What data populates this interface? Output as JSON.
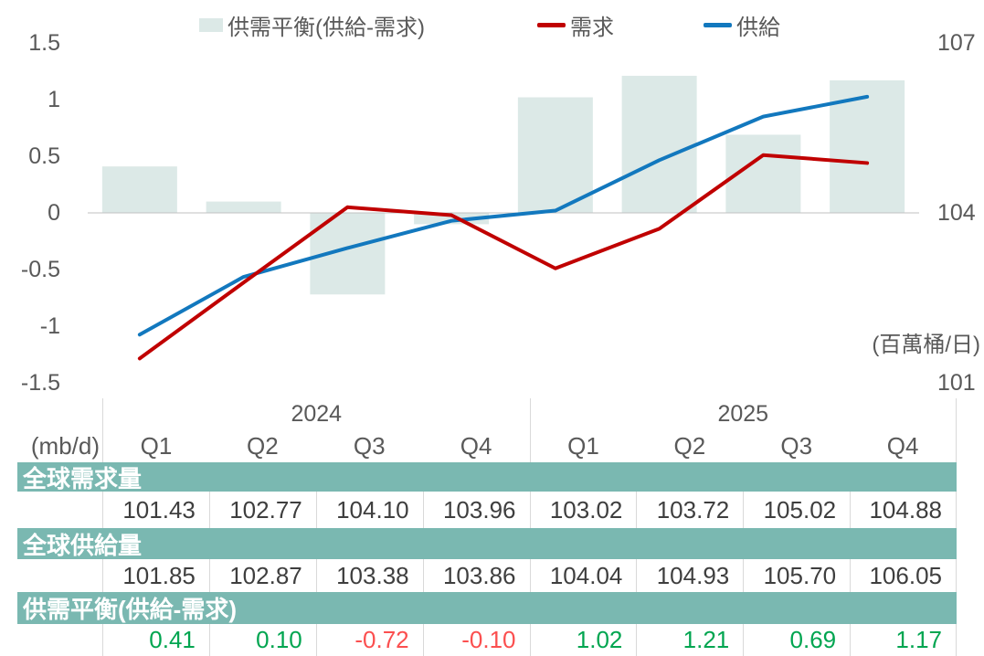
{
  "legend": {
    "items": [
      {
        "label": "供需平衡(供給-需求)",
        "marker": "square",
        "color": "#DCE9E7"
      },
      {
        "label": "需求",
        "marker": "line",
        "color": "#C00000"
      },
      {
        "label": "供給",
        "marker": "line",
        "color": "#1278BE"
      }
    ]
  },
  "unit_note": "(百萬桶/日)",
  "chart_data": {
    "type": "combo-bar-line",
    "categories": [
      "2024 Q1",
      "2024 Q2",
      "2024 Q3",
      "2024 Q4",
      "2025 Q1",
      "2025 Q2",
      "2025 Q3",
      "2025 Q4"
    ],
    "bar_series": {
      "name": "供需平衡(供給-需求)",
      "axis": "left",
      "color": "#DCE9E7",
      "values": [
        0.41,
        0.1,
        -0.72,
        -0.1,
        1.02,
        1.21,
        0.69,
        1.17
      ]
    },
    "line_series": [
      {
        "name": "需求",
        "axis": "right",
        "color": "#C00000",
        "values": [
          101.43,
          102.77,
          104.1,
          103.96,
          103.02,
          103.72,
          105.02,
          104.88
        ]
      },
      {
        "name": "供給",
        "axis": "right",
        "color": "#1278BE",
        "values": [
          101.85,
          102.87,
          103.38,
          103.86,
          104.04,
          104.93,
          105.7,
          106.05
        ]
      }
    ],
    "left_axis": {
      "min": -1.5,
      "max": 1.5,
      "tick_labels": [
        "1.5",
        "1",
        "0.5",
        "0",
        "-0.5",
        "-1",
        "-1.5"
      ],
      "tick_values": [
        1.5,
        1,
        0.5,
        0,
        -0.5,
        -1,
        -1.5
      ]
    },
    "right_axis": {
      "min": 101,
      "max": 107,
      "tick_labels": [
        "107",
        "104",
        "101"
      ],
      "tick_values": [
        107,
        104,
        101
      ]
    },
    "grid": false,
    "zero_line_color": "#C1C1C1",
    "legend_position": "top"
  },
  "table": {
    "unit_label": "(mb/d)",
    "year_groups": [
      {
        "label": "2024",
        "quarters": [
          "Q1",
          "Q2",
          "Q3",
          "Q4"
        ]
      },
      {
        "label": "2025",
        "quarters": [
          "Q1",
          "Q2",
          "Q3",
          "Q4"
        ]
      }
    ],
    "rows": [
      {
        "header": "全球需求量",
        "colored": false,
        "values": [
          "101.43",
          "102.77",
          "104.10",
          "103.96",
          "103.02",
          "103.72",
          "105.02",
          "104.88"
        ]
      },
      {
        "header": "全球供給量",
        "colored": false,
        "values": [
          "101.85",
          "102.87",
          "103.38",
          "103.86",
          "104.04",
          "104.93",
          "105.70",
          "106.05"
        ]
      },
      {
        "header": "供需平衡(供給-需求)",
        "colored": true,
        "values": [
          "0.41",
          "0.10",
          "-0.72",
          "-0.10",
          "1.02",
          "1.21",
          "0.69",
          "1.17"
        ]
      }
    ],
    "colors": {
      "band": "#7AB8B1",
      "positive": "#00A550",
      "negative": "#FB4F4F"
    }
  }
}
